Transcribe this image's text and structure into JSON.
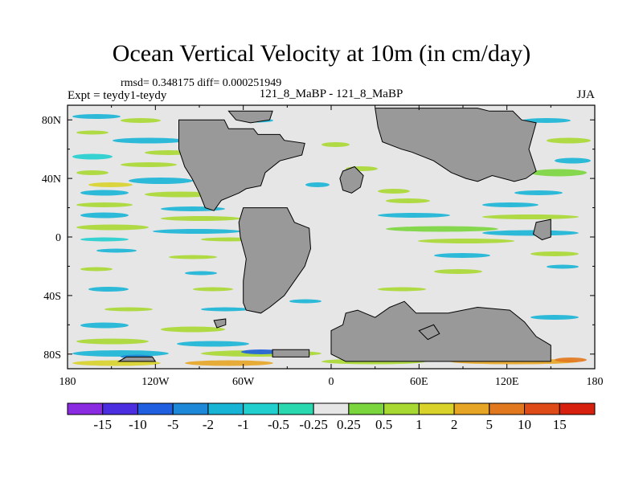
{
  "chart_data": {
    "type": "heatmap",
    "title": "Ocean Vertical Velocity at 10m (in cm/day)",
    "stats_text": "rmsd= 0.348175  diff= 0.000251949",
    "left_label": "Expt = teydy1-teydy",
    "center_label": "121_8_MaBP - 121_8_MaBP",
    "right_label": "JJA",
    "x_ticks": [
      "180",
      "120W",
      "60W",
      "0",
      "60E",
      "120E",
      "180"
    ],
    "x_tick_values": [
      -180,
      -120,
      -60,
      0,
      60,
      120,
      180
    ],
    "y_ticks": [
      "80N",
      "40N",
      "0",
      "40S",
      "80S"
    ],
    "y_tick_values": [
      80,
      40,
      0,
      -40,
      -80
    ],
    "xlim": [
      -180,
      180
    ],
    "ylim": [
      -90,
      90
    ],
    "colorbar": {
      "levels": [
        "-15",
        "-10",
        "-5",
        "-2",
        "-1",
        "-0.5",
        "-0.25",
        "0.25",
        "0.5",
        "1",
        "2",
        "5",
        "10",
        "15"
      ],
      "colors": [
        "#8a2be2",
        "#4a2ee0",
        "#1f5fe0",
        "#1e88d8",
        "#18b4d6",
        "#22cfcf",
        "#2ad8b0",
        "#e6e6e6",
        "#7ad63c",
        "#a8d832",
        "#d8d22a",
        "#e6a524",
        "#e2781e",
        "#de4a18",
        "#d8200f"
      ]
    },
    "land_color": "#999999",
    "ocean_color": "#e6e6e6"
  }
}
